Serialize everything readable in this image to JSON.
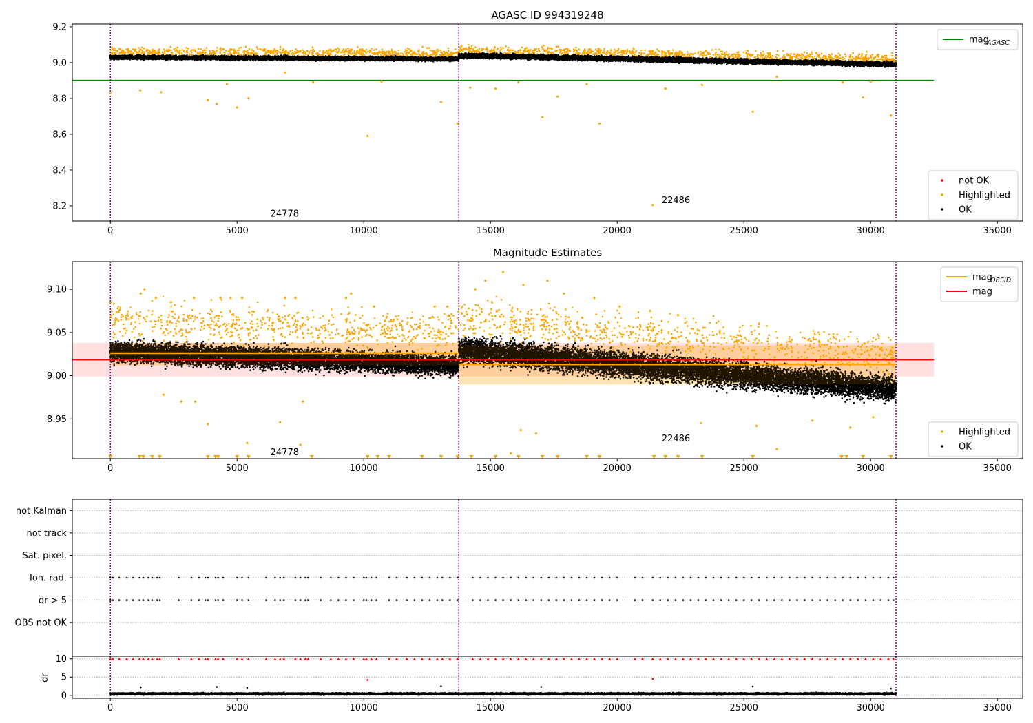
{
  "chart_data": [
    {
      "type": "scatter",
      "title": "AGASC ID 994319248",
      "xlim": [
        -1500,
        36000
      ],
      "ylim": [
        8.115,
        9.215
      ],
      "xticks": [
        "0",
        "5000",
        "10000",
        "15000",
        "20000",
        "25000",
        "30000",
        "35000"
      ],
      "xtick_values": [
        0,
        5000,
        10000,
        15000,
        20000,
        25000,
        30000,
        35000
      ],
      "yticks": [
        "8.2",
        "8.4",
        "8.6",
        "8.8",
        "9.0",
        "9.2"
      ],
      "ytick_values": [
        8.2,
        8.4,
        8.6,
        8.8,
        9.0,
        9.2
      ],
      "obsid_boundaries": [
        0,
        13750,
        31000
      ],
      "obsid_labels": [
        {
          "text": "24778",
          "x": 6860,
          "y": 8.16
        },
        {
          "text": "22486",
          "x": 22300,
          "y": 8.235
        }
      ],
      "hlines": [
        {
          "name": "mag_AGASC",
          "y": 8.9,
          "x": [
            -1500,
            32500
          ],
          "color": "#008000"
        }
      ],
      "ok_band": [
        {
          "x": [
            0,
            13750
          ],
          "y_center": [
            9.03,
            9.02
          ],
          "half_width": 0.018
        },
        {
          "x": [
            13750,
            31000
          ],
          "y_center": [
            9.04,
            8.99
          ],
          "half_width": 0.022
        }
      ],
      "highlighted_points": [
        [
          0,
          8.83
        ],
        [
          1180,
          8.845
        ],
        [
          2000,
          8.835
        ],
        [
          3850,
          8.79
        ],
        [
          4200,
          8.77
        ],
        [
          4600,
          8.88
        ],
        [
          5000,
          8.75
        ],
        [
          5450,
          8.8
        ],
        [
          6900,
          8.945
        ],
        [
          8000,
          8.89
        ],
        [
          10150,
          8.59
        ],
        [
          10700,
          8.895
        ],
        [
          13050,
          8.78
        ],
        [
          13700,
          8.66
        ],
        [
          14200,
          8.86
        ],
        [
          15200,
          8.855
        ],
        [
          16100,
          8.89
        ],
        [
          17050,
          8.695
        ],
        [
          17650,
          8.81
        ],
        [
          18800,
          8.88
        ],
        [
          19300,
          8.66
        ],
        [
          21400,
          8.205
        ],
        [
          21900,
          8.855
        ],
        [
          23350,
          8.875
        ],
        [
          25350,
          8.725
        ],
        [
          26300,
          8.92
        ],
        [
          28900,
          8.89
        ],
        [
          29700,
          8.805
        ],
        [
          30000,
          8.895
        ],
        [
          30800,
          8.705
        ]
      ],
      "legend": {
        "position": "upper right",
        "entries": [
          {
            "label": "mag",
            "sub": "AGASC",
            "color": "#008000"
          }
        ]
      },
      "legend2": {
        "position": "lower right",
        "entries": [
          {
            "label": "not OK",
            "color": "#ff0000"
          },
          {
            "label": "Highlighted",
            "color": "#ffa500"
          },
          {
            "label": "OK",
            "color": "#000000"
          }
        ]
      }
    },
    {
      "type": "scatter",
      "title": "Magnitude Estimates",
      "xlim": [
        -1500,
        36000
      ],
      "ylim": [
        8.904,
        9.132
      ],
      "xticks": [
        "0",
        "5000",
        "10000",
        "15000",
        "20000",
        "25000",
        "30000",
        "35000"
      ],
      "xtick_values": [
        0,
        5000,
        10000,
        15000,
        20000,
        25000,
        30000,
        35000
      ],
      "yticks": [
        "8.95",
        "9.00",
        "9.05",
        "9.10"
      ],
      "ytick_values": [
        8.95,
        9.0,
        9.05,
        9.1
      ],
      "obsid_boundaries": [
        0,
        13750,
        31000
      ],
      "obsid_labels": [
        {
          "text": "24778",
          "x": 6860,
          "y": 8.912
        },
        {
          "text": "22486",
          "x": 22300,
          "y": 8.928
        }
      ],
      "mag": 9.0185,
      "mag_band": [
        8.999,
        9.038
      ],
      "mag_obsid": [
        {
          "x": [
            0,
            13750
          ],
          "y": 9.026
        },
        {
          "x": [
            13750,
            31000
          ],
          "y": 9.013
        }
      ],
      "mag_obsid_band": [
        {
          "x": [
            0,
            13750
          ],
          "y": [
            9.012,
            9.038
          ]
        },
        {
          "x": [
            13750,
            31000
          ],
          "y": [
            8.99,
            9.035
          ]
        }
      ],
      "ok_band": [
        {
          "x": [
            0,
            13750
          ],
          "y_center": [
            9.028,
            9.012
          ],
          "half_width": 0.02
        },
        {
          "x": [
            13750,
            31000
          ],
          "y_center": [
            9.03,
            8.985
          ],
          "half_width": 0.025
        }
      ],
      "highlighted_points": [
        [
          0,
          9.085
        ],
        [
          1200,
          9.095
        ],
        [
          1350,
          9.1
        ],
        [
          1800,
          9.09
        ],
        [
          2400,
          9.085
        ],
        [
          3300,
          9.09
        ],
        [
          4350,
          9.09
        ],
        [
          4750,
          9.09
        ],
        [
          5200,
          9.09
        ],
        [
          6900,
          9.09
        ],
        [
          7300,
          9.09
        ],
        [
          9300,
          9.09
        ],
        [
          9500,
          9.095
        ],
        [
          10400,
          9.08
        ],
        [
          12800,
          9.08
        ],
        [
          13300,
          9.08
        ],
        [
          14400,
          9.1
        ],
        [
          14800,
          9.11
        ],
        [
          15500,
          9.12
        ],
        [
          16300,
          9.105
        ],
        [
          17250,
          9.11
        ],
        [
          17900,
          9.095
        ],
        [
          19100,
          9.09
        ],
        [
          20100,
          9.08
        ],
        [
          21300,
          9.075
        ],
        [
          22400,
          9.07
        ],
        [
          2100,
          8.978
        ],
        [
          2800,
          8.97
        ],
        [
          3350,
          8.97
        ],
        [
          3850,
          8.944
        ],
        [
          6700,
          8.946
        ],
        [
          5400,
          8.922
        ],
        [
          7500,
          8.92
        ],
        [
          7600,
          8.97
        ],
        [
          16200,
          8.937
        ],
        [
          16800,
          8.933
        ],
        [
          15800,
          8.91
        ],
        [
          23300,
          8.945
        ],
        [
          25500,
          8.942
        ],
        [
          26300,
          8.915
        ],
        [
          27700,
          8.948
        ],
        [
          29200,
          8.94
        ],
        [
          30100,
          8.952
        ]
      ],
      "clipped_low_x": [
        0,
        1150,
        1300,
        1650,
        1950,
        3850,
        4150,
        4250,
        5000,
        5450,
        7950,
        10150,
        10550,
        11000,
        12300,
        13050,
        13700,
        14250,
        15200,
        16100,
        17050,
        17650,
        18800,
        19300,
        21450,
        21900,
        22400,
        23350,
        25350,
        28850,
        29050,
        29700,
        30800
      ],
      "legend": {
        "position": "upper right",
        "entries": [
          {
            "label": "mag",
            "sub": "OBSID",
            "color": "#ffa500"
          },
          {
            "label": "mag",
            "sub": "",
            "color": "#ff0000"
          }
        ]
      },
      "legend2": {
        "position": "lower right",
        "entries": [
          {
            "label": "Highlighted",
            "color": "#ffa500"
          },
          {
            "label": "OK",
            "color": "#000000"
          }
        ]
      }
    },
    {
      "type": "scatter",
      "title": "",
      "xlim": [
        -1500,
        36000
      ],
      "ylim": [
        -0.5,
        6.5
      ],
      "flag_rows": [
        "not Kalman",
        "not track",
        "Sat. pixel.",
        "Ion. rad.",
        "dr > 5",
        "OBS not OK"
      ],
      "flag_row_values": [
        6,
        5,
        4,
        3,
        2,
        1
      ],
      "flagged_x": [
        0,
        100,
        350,
        650,
        900,
        1150,
        1300,
        1500,
        1650,
        1850,
        1950,
        2700,
        3200,
        3500,
        3750,
        3850,
        4150,
        4250,
        4450,
        5000,
        5200,
        5450,
        6150,
        6500,
        6700,
        6850,
        7300,
        7500,
        7700,
        7800,
        8300,
        8700,
        9000,
        9300,
        9600,
        10000,
        10100,
        10300,
        10500,
        11000,
        11300,
        11700,
        12000,
        12300,
        12600,
        12900,
        13100,
        13400,
        13700,
        14300,
        14600,
        14900,
        15200,
        15500,
        15800,
        16100,
        16400,
        16700,
        17000,
        17300,
        17600,
        17900,
        18200,
        18500,
        18800,
        19100,
        19400,
        19700,
        20000,
        20700,
        21000,
        21400,
        21700,
        22000,
        22300,
        22600,
        22900,
        23200,
        23500,
        23800,
        24100,
        24400,
        24700,
        25000,
        25300,
        25600,
        25900,
        26200,
        26500,
        26800,
        27100,
        27400,
        27700,
        28000,
        28300,
        28600,
        28900,
        29200,
        29500,
        29800,
        30100,
        30400,
        30700,
        30900
      ],
      "flagged_rows": [
        "Ion. rad.",
        "dr > 5"
      ],
      "obsid_boundaries": [
        0,
        13750,
        31000
      ]
    },
    {
      "type": "scatter",
      "title": "",
      "xlim": [
        -1500,
        36000
      ],
      "ylim": [
        -0.8,
        10.7
      ],
      "ylabel": "dr",
      "xticks": [
        "0",
        "5000",
        "10000",
        "15000",
        "20000",
        "25000",
        "30000",
        "35000"
      ],
      "xtick_values": [
        0,
        5000,
        10000,
        15000,
        20000,
        25000,
        30000,
        35000
      ],
      "yticks": [
        "0",
        "5",
        "10"
      ],
      "ytick_values": [
        0,
        5,
        10
      ],
      "dr_clipped_at": 10,
      "dr_outliers": [
        [
          10150,
          4.2
        ],
        [
          21400,
          4.5
        ],
        [
          1200,
          2.2
        ],
        [
          4200,
          2.3
        ],
        [
          5400,
          2.1
        ],
        [
          13050,
          2.5
        ],
        [
          17000,
          2.3
        ],
        [
          25350,
          2.4
        ],
        [
          30800,
          1.8
        ]
      ],
      "obsid_boundaries": [
        0,
        13750,
        31000
      ]
    }
  ]
}
